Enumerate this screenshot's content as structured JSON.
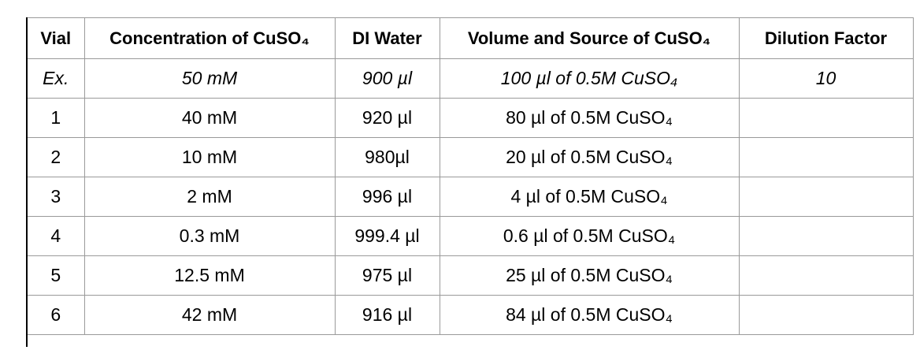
{
  "table": {
    "headers": [
      "Vial",
      "Concentration of CuSO₄",
      "DI Water",
      "Volume and Source of CuSO₄",
      "Dilution Factor"
    ],
    "rows": [
      [
        "Ex.",
        "50 mM",
        "900 µl",
        "100 µl of 0.5M CuSO₄",
        "10"
      ],
      [
        "1",
        "40 mM",
        "920 µl",
        "80 µl of 0.5M CuSO₄",
        ""
      ],
      [
        "2",
        "10 mM",
        "980µl",
        "20 µl of 0.5M CuSO₄",
        ""
      ],
      [
        "3",
        "2 mM",
        "996 µl",
        "4 µl of 0.5M CuSO₄",
        ""
      ],
      [
        "4",
        "0.3 mM",
        "999.4 µl",
        "0.6 µl of 0.5M CuSO₄",
        ""
      ],
      [
        "5",
        "12.5 mM",
        "975 µl",
        "25 µl of 0.5M CuSO₄",
        ""
      ],
      [
        "6",
        "42 mM",
        "916 µl",
        "84 µl of 0.5M CuSO₄",
        ""
      ]
    ]
  }
}
